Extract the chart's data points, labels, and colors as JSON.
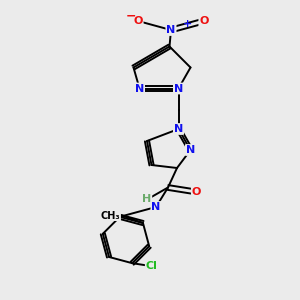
{
  "background_color": "#ebebeb",
  "colors": {
    "N": "#1010ee",
    "O": "#ee1010",
    "C": "#000000",
    "H": "#6aaa6a",
    "Cl": "#22bb22",
    "bond": "#000000"
  },
  "lw": 1.4,
  "fs": 8,
  "fs_small": 7
}
